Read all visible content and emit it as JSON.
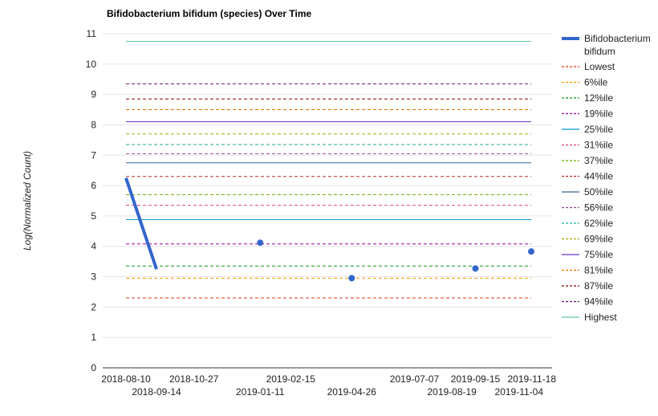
{
  "chart_data": {
    "type": "line",
    "title": "Bifidobacterium bifidum (species) Over Time",
    "xlabel": "",
    "ylabel": "Log(Normalized Count)",
    "ylim": [
      0,
      11
    ],
    "yticks": [
      0,
      1,
      2,
      3,
      4,
      5,
      6,
      7,
      8,
      9,
      10,
      11
    ],
    "xticks": [
      "2018-08-10",
      "2018-09-14",
      "2018-10-27",
      "2019-01-11",
      "2019-02-15",
      "2019-04-26",
      "2019-07-07",
      "2019-08-19",
      "2019-09-15",
      "2019-11-04",
      "2019-11-18"
    ],
    "grid": true,
    "legend_position": "right",
    "series": [
      {
        "name": "Bifidobacterium bifidum",
        "color": "#3366cc",
        "style": "solid-thick",
        "points": [
          {
            "x": "2018-08-10",
            "y": 6.25
          },
          {
            "x": "2018-09-14",
            "y": 3.25
          },
          {
            "x": "2019-01-11",
            "y": 4.12
          },
          {
            "x": "2019-04-26",
            "y": 2.95
          },
          {
            "x": "2019-09-15",
            "y": 3.27
          },
          {
            "x": "2019-11-18",
            "y": 3.83
          }
        ]
      }
    ],
    "reference_lines": [
      {
        "name": "Lowest",
        "value": 2.3,
        "color": "#dc3912",
        "dash": true
      },
      {
        "name": "6%ile",
        "value": 2.95,
        "color": "#ff9900",
        "dash": true
      },
      {
        "name": "12%ile",
        "value": 3.35,
        "color": "#109618",
        "dash": true
      },
      {
        "name": "19%ile",
        "value": 4.08,
        "color": "#990099",
        "dash": true
      },
      {
        "name": "25%ile",
        "value": 4.88,
        "color": "#0099c6",
        "dash": false
      },
      {
        "name": "31%ile",
        "value": 5.35,
        "color": "#dd4477",
        "dash": true
      },
      {
        "name": "37%ile",
        "value": 5.7,
        "color": "#66aa00",
        "dash": true
      },
      {
        "name": "44%ile",
        "value": 6.3,
        "color": "#b82e2e",
        "dash": true
      },
      {
        "name": "50%ile",
        "value": 6.75,
        "color": "#316395",
        "dash": false
      },
      {
        "name": "56%ile",
        "value": 7.05,
        "color": "#994499",
        "dash": true
      },
      {
        "name": "62%ile",
        "value": 7.35,
        "color": "#22aa99",
        "dash": true
      },
      {
        "name": "69%ile",
        "value": 7.7,
        "color": "#aaaa11",
        "dash": true
      },
      {
        "name": "75%ile",
        "value": 8.1,
        "color": "#6633cc",
        "dash": false
      },
      {
        "name": "81%ile",
        "value": 8.5,
        "color": "#e67300",
        "dash": true
      },
      {
        "name": "87%ile",
        "value": 8.85,
        "color": "#8b0707",
        "dash": true
      },
      {
        "name": "94%ile",
        "value": 9.35,
        "color": "#651067",
        "dash": true
      },
      {
        "name": "Highest",
        "value": 10.75,
        "color": "#5ec8a4",
        "dash": false
      }
    ]
  }
}
